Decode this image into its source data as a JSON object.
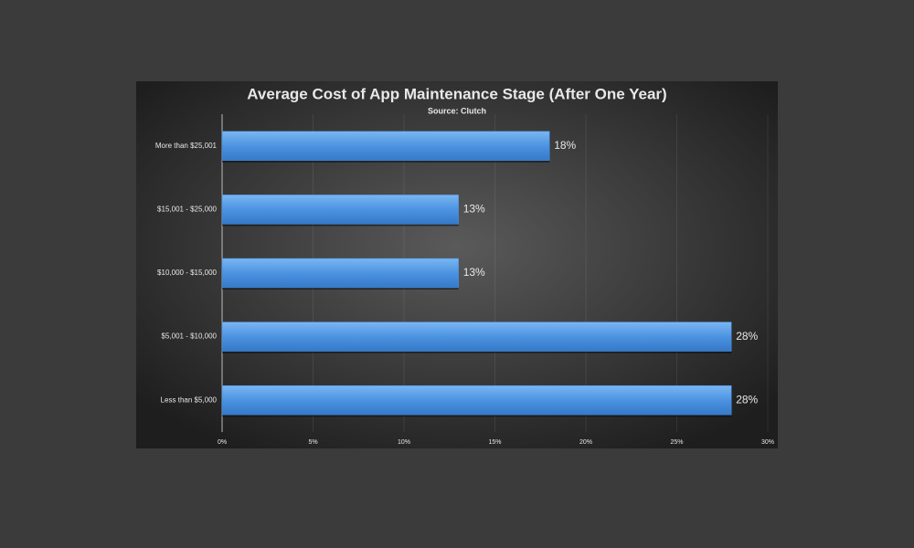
{
  "chart_data": {
    "type": "bar",
    "orientation": "horizontal",
    "title": "Average Cost of App Maintenance Stage (After One Year)",
    "subtitle": "Source: Clutch",
    "categories": [
      "More than $25,001",
      "$15,001 - $25,000",
      "$10,000 - $15,000",
      "$5,001 - $10,000",
      "Less than $5,000"
    ],
    "values": [
      18,
      13,
      13,
      28,
      28
    ],
    "value_labels": [
      "18%",
      "13%",
      "13%",
      "28%",
      "28%"
    ],
    "color": "#4a90e0",
    "xlim": [
      0,
      30
    ],
    "xticks": [
      {
        "value": 0,
        "label": "0%"
      },
      {
        "value": 5,
        "label": "5%"
      },
      {
        "value": 10,
        "label": "10%"
      },
      {
        "value": 15,
        "label": "15%"
      },
      {
        "value": 20,
        "label": "20%"
      },
      {
        "value": 25,
        "label": "25%"
      },
      {
        "value": 30,
        "label": "30%"
      }
    ],
    "grid": true
  }
}
